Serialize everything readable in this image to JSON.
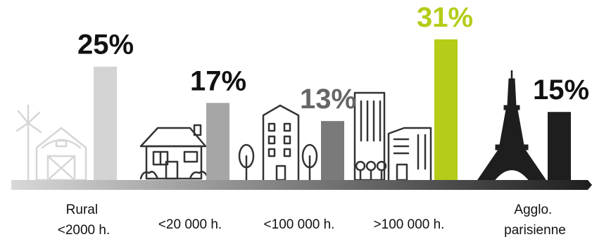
{
  "chart_data": {
    "type": "bar",
    "categories": [
      {
        "lines": [
          "Rural",
          "<2000 h."
        ]
      },
      {
        "lines": [
          "<20 000 h."
        ]
      },
      {
        "lines": [
          "<100 000 h."
        ]
      },
      {
        "lines": [
          ">100 000 h."
        ]
      },
      {
        "lines": [
          "Agglo.",
          "parisienne"
        ]
      }
    ],
    "values": [
      25,
      17,
      13,
      31,
      15
    ],
    "value_labels": [
      "25%",
      "17%",
      "13%",
      "31%",
      "15%"
    ],
    "bar_colors": [
      "#d4d4d4",
      "#a6a6a6",
      "#7a7a7a",
      "#b5cc18",
      "#1e1e1e"
    ],
    "value_label_colors": [
      "#111111",
      "#111111",
      "#666666",
      "#b5cc18",
      "#111111"
    ],
    "icons": [
      "windmill-barn-icon",
      "house-icon",
      "apartment-trees-icon",
      "city-buildings-icon",
      "eiffel-tower-icon"
    ],
    "title": "",
    "xlabel": "",
    "ylabel": "",
    "ylim": [
      0,
      31
    ],
    "grid": false,
    "legend": "none",
    "axis_gradient": [
      "#d8d8d8",
      "#1e1e1e"
    ]
  }
}
